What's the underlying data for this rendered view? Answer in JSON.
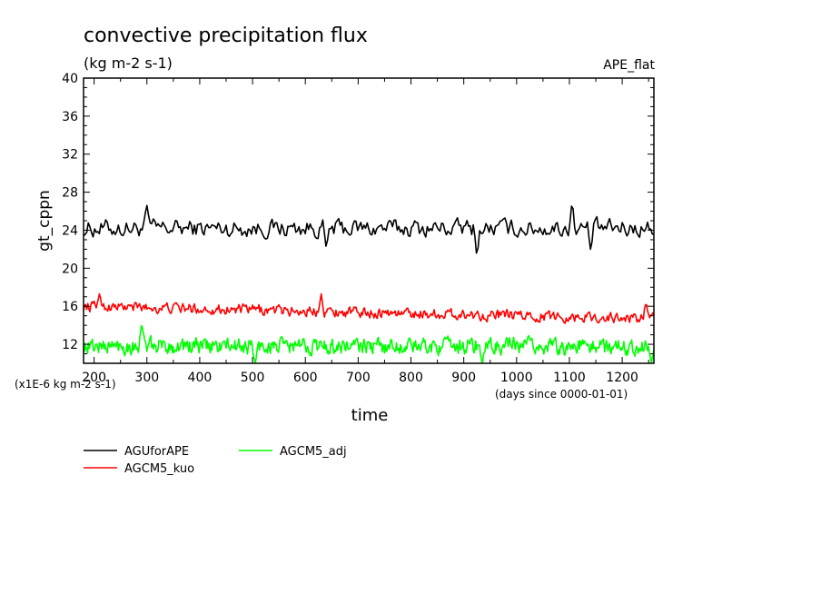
{
  "chart_data": {
    "type": "line",
    "title": "convective precipitation flux",
    "units": "(kg m-2 s-1)",
    "experiment": "APE_flat",
    "ylabel": "gt_cppn",
    "xlabel": "time",
    "scale_note": "(x1E-6 kg m-2 s-1)",
    "time_note": "(days since 0000-01-01)",
    "xlim": [
      180,
      1260
    ],
    "ylim": [
      10,
      40
    ],
    "xticks": [
      200,
      300,
      400,
      500,
      600,
      700,
      800,
      900,
      1000,
      1100,
      1200
    ],
    "yticks": [
      12,
      16,
      20,
      24,
      28,
      32,
      36,
      40
    ],
    "legend_position": "bottom-left",
    "colors": {
      "AGUforAPE": "#000000",
      "AGCM5_kuo": "#ff0000",
      "AGCM5_adj": "#00ff00"
    },
    "series": [
      {
        "name": "AGUforAPE",
        "mean": 24.2,
        "amplitude": 1.0,
        "x_start": 180,
        "x_end": 1260,
        "step": 3,
        "features": [
          {
            "x": 300,
            "value": 26.6
          },
          {
            "x": 640,
            "value": 21.9
          },
          {
            "x": 925,
            "value": 21.2
          },
          {
            "x": 1105,
            "value": 27.0
          },
          {
            "x": 1140,
            "value": 22.0
          }
        ]
      },
      {
        "name": "AGCM5_kuo",
        "mean": 15.1,
        "amplitude": 0.6,
        "trend": [
          16.0,
          14.7
        ],
        "x_start": 180,
        "x_end": 1260,
        "step": 2,
        "features": [
          {
            "x": 210,
            "value": 17.3
          },
          {
            "x": 630,
            "value": 17.3
          },
          {
            "x": 1245,
            "value": 16.4
          }
        ]
      },
      {
        "name": "AGCM5_adj",
        "mean": 11.8,
        "amplitude": 0.9,
        "x_start": 180,
        "x_end": 1260,
        "step": 1.5,
        "features": [
          {
            "x": 290,
            "value": 14.2
          },
          {
            "x": 505,
            "value": 9.9
          },
          {
            "x": 935,
            "value": 9.9
          },
          {
            "x": 1255,
            "value": 9.9
          }
        ]
      }
    ]
  }
}
